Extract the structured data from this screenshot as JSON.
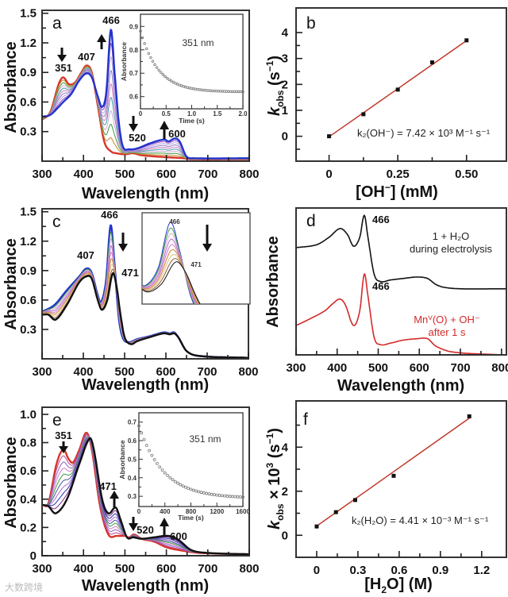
{
  "watermark": "大数跨境",
  "chart_data": [
    {
      "panel": "a",
      "type": "line",
      "xlabel": "Wavelength (nm)",
      "ylabel": "Absorbance",
      "xlim": [
        300,
        800
      ],
      "ylim": [
        0,
        1.53
      ],
      "xticks": [
        "300",
        "400",
        "500",
        "600",
        "700",
        "800"
      ],
      "yticks": [
        "0.3",
        "0.6",
        "0.9",
        "1.2",
        "1.5"
      ],
      "peak_labels": [
        "351",
        "407",
        "466",
        "520",
        "600"
      ],
      "n_traces": 10,
      "colors": [
        "#d6352a",
        "#c9852a",
        "#3f9a45",
        "#d9a8d9",
        "#3f9fa6",
        "#d47ac4",
        "#8f7fc7",
        "#b8a6e0",
        "#8e3fb8",
        "#2233cc"
      ],
      "start_spectrum": [
        [
          300,
          0.42
        ],
        [
          320,
          0.5
        ],
        [
          340,
          0.78
        ],
        [
          351,
          0.85
        ],
        [
          365,
          0.78
        ],
        [
          380,
          0.8
        ],
        [
          395,
          0.9
        ],
        [
          407,
          0.97
        ],
        [
          420,
          0.9
        ],
        [
          435,
          0.55
        ],
        [
          450,
          0.2
        ],
        [
          466,
          0.1
        ],
        [
          480,
          0.08
        ],
        [
          500,
          0.07
        ],
        [
          520,
          0.08
        ],
        [
          540,
          0.06
        ],
        [
          600,
          0.04
        ],
        [
          640,
          0.03
        ],
        [
          660,
          0.02
        ],
        [
          800,
          0.02
        ]
      ],
      "end_spectrum": [
        [
          300,
          0.45
        ],
        [
          320,
          0.47
        ],
        [
          340,
          0.55
        ],
        [
          351,
          0.6
        ],
        [
          370,
          0.68
        ],
        [
          390,
          0.82
        ],
        [
          407,
          0.89
        ],
        [
          420,
          0.85
        ],
        [
          435,
          0.65
        ],
        [
          445,
          0.55
        ],
        [
          455,
          0.7
        ],
        [
          466,
          1.33
        ],
        [
          475,
          0.9
        ],
        [
          485,
          0.4
        ],
        [
          495,
          0.15
        ],
        [
          510,
          0.12
        ],
        [
          530,
          0.13
        ],
        [
          560,
          0.18
        ],
        [
          595,
          0.22
        ],
        [
          605,
          0.2
        ],
        [
          620,
          0.23
        ],
        [
          632,
          0.2
        ],
        [
          648,
          0.05
        ],
        [
          665,
          0.03
        ],
        [
          800,
          0.03
        ]
      ],
      "inset": {
        "type": "scatter",
        "label": "351 nm",
        "xlabel": "Time (s)",
        "ylabel": "Absorbance",
        "xlim": [
          0,
          2
        ],
        "ylim": [
          0.548,
          0.952
        ],
        "xticks": [
          "0",
          "0.5",
          "1.0",
          "1.5",
          "2.0"
        ],
        "yticks": [
          "0.6",
          "0.7",
          "0.8",
          "0.9"
        ],
        "decay": {
          "A_inf": 0.62,
          "A_amp": 0.26,
          "tau": 0.35,
          "t_step": 0.04,
          "t_max": 2.0
        }
      }
    },
    {
      "panel": "b",
      "type": "scatter",
      "xlabel_parts": [
        "[OH",
        "−",
        "] (mM)"
      ],
      "ylabel_parts": [
        "k",
        "obs",
        " (s",
        "−1",
        ")"
      ],
      "xlim": [
        -0.12,
        0.645
      ],
      "ylim": [
        -0.96,
        4.95
      ],
      "xticks": [
        "0",
        "0.25",
        "0.50"
      ],
      "yticks": [
        "0",
        "1",
        "2",
        "3",
        "4"
      ],
      "x": [
        0,
        0.125,
        0.25,
        0.375,
        0.5
      ],
      "y": [
        0.0,
        0.85,
        1.8,
        2.85,
        3.7
      ],
      "fit": {
        "slope": 7.42,
        "intercept": -0.02,
        "color": "#c0392b"
      },
      "annotation": "k₂(OH⁻) = 7.42 × 10³ M⁻¹ s⁻¹"
    },
    {
      "panel": "c",
      "type": "line",
      "xlabel": "Wavelength (nm)",
      "ylabel": "Absorbance",
      "xlim": [
        300,
        800
      ],
      "ylim": [
        0,
        1.53
      ],
      "xticks": [
        "300",
        "400",
        "500",
        "600",
        "700",
        "800"
      ],
      "yticks": [
        "0.3",
        "0.6",
        "0.9",
        "1.2",
        "1.5"
      ],
      "peak_labels": [
        "466",
        "407",
        "471"
      ],
      "inset_labels": [
        "466",
        "471"
      ],
      "n_traces": 9,
      "colors": [
        "#2233cc",
        "#3f9a45",
        "#d9a8d9",
        "#b06bd0",
        "#d47ac4",
        "#c9852a",
        "#e0c080",
        "#8a6040",
        "#111111"
      ],
      "start_spectrum": [
        [
          300,
          0.48
        ],
        [
          330,
          0.55
        ],
        [
          360,
          0.7
        ],
        [
          390,
          0.84
        ],
        [
          407,
          0.92
        ],
        [
          420,
          0.88
        ],
        [
          435,
          0.65
        ],
        [
          443,
          0.58
        ],
        [
          455,
          0.8
        ],
        [
          466,
          1.36
        ],
        [
          475,
          1.0
        ],
        [
          485,
          0.45
        ],
        [
          495,
          0.22
        ],
        [
          510,
          0.17
        ],
        [
          530,
          0.2
        ],
        [
          560,
          0.23
        ],
        [
          595,
          0.27
        ],
        [
          610,
          0.26
        ],
        [
          620,
          0.27
        ],
        [
          630,
          0.22
        ],
        [
          650,
          0.08
        ],
        [
          680,
          0.03
        ],
        [
          800,
          0.01
        ]
      ],
      "end_spectrum": [
        [
          300,
          0.45
        ],
        [
          315,
          0.45
        ],
        [
          333,
          0.4
        ],
        [
          360,
          0.55
        ],
        [
          390,
          0.78
        ],
        [
          407,
          0.84
        ],
        [
          420,
          0.82
        ],
        [
          435,
          0.6
        ],
        [
          445,
          0.5
        ],
        [
          458,
          0.6
        ],
        [
          471,
          0.87
        ],
        [
          480,
          0.75
        ],
        [
          490,
          0.45
        ],
        [
          500,
          0.22
        ],
        [
          515,
          0.15
        ],
        [
          530,
          0.18
        ],
        [
          560,
          0.22
        ],
        [
          595,
          0.26
        ],
        [
          610,
          0.25
        ],
        [
          620,
          0.26
        ],
        [
          630,
          0.22
        ],
        [
          650,
          0.08
        ],
        [
          680,
          0.03
        ],
        [
          800,
          0.01
        ]
      ]
    },
    {
      "panel": "d",
      "type": "line",
      "xlabel": "Wavelength (nm)",
      "ylabel": "Absorbance",
      "xlim": [
        300,
        812
      ],
      "ylim": [
        0,
        1
      ],
      "xticks": [
        "300",
        "400",
        "500",
        "600",
        "700",
        "800"
      ],
      "series": [
        {
          "name": "1 + H₂O during electrolysis",
          "legend_1": "1 + H₂O",
          "legend_2": "during electrolysis",
          "peak": "466",
          "color": "#111111",
          "points": [
            [
              300,
              0.73
            ],
            [
              350,
              0.75
            ],
            [
              380,
              0.8
            ],
            [
              407,
              0.86
            ],
            [
              425,
              0.82
            ],
            [
              440,
              0.74
            ],
            [
              455,
              0.8
            ],
            [
              466,
              0.95
            ],
            [
              475,
              0.8
            ],
            [
              490,
              0.55
            ],
            [
              505,
              0.5
            ],
            [
              530,
              0.51
            ],
            [
              560,
              0.52
            ],
            [
              595,
              0.53
            ],
            [
              620,
              0.52
            ],
            [
              640,
              0.48
            ],
            [
              660,
              0.46
            ],
            [
              700,
              0.45
            ],
            [
              800,
              0.45
            ]
          ]
        },
        {
          "name": "MnV(O) + OH− after 1 s",
          "legend_1": "Mnⱽ(O) + OH⁻",
          "legend_2": "after 1 s",
          "peak": "466",
          "color": "#d42a2a",
          "points": [
            [
              300,
              0.2
            ],
            [
              330,
              0.24
            ],
            [
              370,
              0.3
            ],
            [
              390,
              0.35
            ],
            [
              407,
              0.38
            ],
            [
              420,
              0.34
            ],
            [
              440,
              0.2
            ],
            [
              455,
              0.3
            ],
            [
              466,
              0.55
            ],
            [
              475,
              0.4
            ],
            [
              490,
              0.12
            ],
            [
              505,
              0.07
            ],
            [
              530,
              0.08
            ],
            [
              560,
              0.1
            ],
            [
              595,
              0.11
            ],
            [
              620,
              0.11
            ],
            [
              640,
              0.06
            ],
            [
              680,
              0.02
            ],
            [
              800,
              0.0
            ]
          ]
        }
      ]
    },
    {
      "panel": "e",
      "type": "line",
      "xlabel": "Wavelength (nm)",
      "ylabel": "Absorbance",
      "xlim": [
        300,
        800
      ],
      "ylim": [
        0,
        1.05
      ],
      "xticks": [
        "300",
        "400",
        "500",
        "600",
        "700",
        "800"
      ],
      "yticks": [
        "0",
        "0.2",
        "0.4",
        "0.6",
        "0.8",
        "1.0"
      ],
      "peak_labels": [
        "351",
        "471",
        "520",
        "600"
      ],
      "n_traces": 10,
      "colors": [
        "#d6352a",
        "#c0408a",
        "#8a5fc0",
        "#d47ac4",
        "#3f9a45",
        "#4a5aa0",
        "#b06bd0",
        "#2233aa",
        "#7a2a8a",
        "#111111"
      ],
      "start_spectrum": [
        [
          300,
          0.36
        ],
        [
          315,
          0.37
        ],
        [
          335,
          0.65
        ],
        [
          351,
          0.75
        ],
        [
          365,
          0.68
        ],
        [
          375,
          0.66
        ],
        [
          390,
          0.75
        ],
        [
          407,
          0.87
        ],
        [
          420,
          0.75
        ],
        [
          440,
          0.35
        ],
        [
          460,
          0.15
        ],
        [
          480,
          0.14
        ],
        [
          500,
          0.14
        ],
        [
          510,
          0.13
        ],
        [
          522,
          0.15
        ],
        [
          540,
          0.12
        ],
        [
          570,
          0.1
        ],
        [
          600,
          0.06
        ],
        [
          630,
          0.04
        ],
        [
          680,
          0.02
        ],
        [
          800,
          0.01
        ]
      ],
      "end_spectrum": [
        [
          300,
          0.36
        ],
        [
          315,
          0.35
        ],
        [
          333,
          0.3
        ],
        [
          360,
          0.4
        ],
        [
          390,
          0.65
        ],
        [
          415,
          0.83
        ],
        [
          425,
          0.75
        ],
        [
          445,
          0.4
        ],
        [
          460,
          0.3
        ],
        [
          478,
          0.34
        ],
        [
          490,
          0.25
        ],
        [
          505,
          0.13
        ],
        [
          520,
          0.13
        ],
        [
          540,
          0.12
        ],
        [
          570,
          0.13
        ],
        [
          605,
          0.14
        ],
        [
          630,
          0.11
        ],
        [
          660,
          0.04
        ],
        [
          700,
          0.02
        ],
        [
          800,
          0.01
        ]
      ],
      "inset": {
        "type": "scatter",
        "label": "351 nm",
        "xlabel": "Time (s)",
        "ylabel": "Absorbance",
        "xlim": [
          0,
          1600
        ],
        "ylim": [
          0.245,
          0.75
        ],
        "xticks": [
          "0",
          "400",
          "800",
          "1200",
          "1600"
        ],
        "yticks": [
          "0.3",
          "0.4",
          "0.5",
          "0.6",
          "0.7"
        ],
        "decay": {
          "A_inf": 0.29,
          "A_amp": 0.39,
          "tau": 380,
          "t_step": 40,
          "t_max": 1600
        }
      }
    },
    {
      "panel": "f",
      "type": "scatter",
      "xlabel_parts": [
        "[H",
        "2",
        "O] (M)"
      ],
      "ylabel_parts": [
        "k",
        "obs",
        " × 10",
        "3",
        " (s",
        "−1",
        ")"
      ],
      "xlim": [
        -0.15,
        1.38
      ],
      "ylim": [
        -1.0,
        6.1
      ],
      "xticks": [
        "0",
        "0.3",
        "0.6",
        "0.9",
        "1.2"
      ],
      "yticks": [
        "0",
        "2",
        "4"
      ],
      "x": [
        0,
        0.14,
        0.28,
        0.56,
        1.11
      ],
      "y": [
        0.4,
        1.05,
        1.6,
        2.7,
        5.4
      ],
      "fit": {
        "slope": 4.41,
        "intercept": 0.42,
        "color": "#c0392b"
      },
      "annotation": "k₂(H₂O) = 4.41 × 10⁻³ M⁻¹ s⁻¹"
    }
  ]
}
